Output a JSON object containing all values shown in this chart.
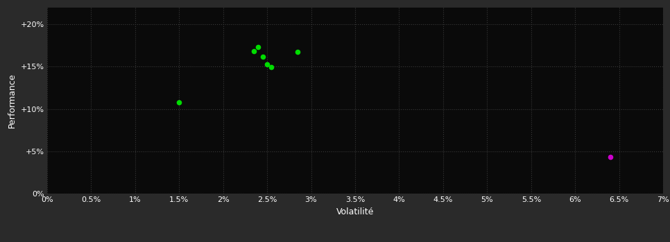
{
  "background_color": "#2a2a2a",
  "plot_background_color": "#0a0a0a",
  "grid_color": "#3a3a3a",
  "xlabel": "Volatilité",
  "ylabel": "Performance",
  "tick_color": "#ffffff",
  "label_color": "#ffffff",
  "xlim": [
    0.0,
    0.07
  ],
  "ylim": [
    0.0,
    0.22
  ],
  "xtick_values": [
    0.0,
    0.005,
    0.01,
    0.015,
    0.02,
    0.025,
    0.03,
    0.035,
    0.04,
    0.045,
    0.05,
    0.055,
    0.06,
    0.065,
    0.07
  ],
  "ytick_values": [
    0.0,
    0.05,
    0.1,
    0.15,
    0.2
  ],
  "green_points": [
    [
      0.015,
      0.108
    ],
    [
      0.0235,
      0.168
    ],
    [
      0.024,
      0.173
    ],
    [
      0.0245,
      0.162
    ],
    [
      0.025,
      0.153
    ],
    [
      0.0255,
      0.149
    ],
    [
      0.0285,
      0.167
    ]
  ],
  "magenta_points": [
    [
      0.064,
      0.043
    ]
  ],
  "green_color": "#00dd00",
  "magenta_color": "#cc00cc",
  "marker_size": 20
}
